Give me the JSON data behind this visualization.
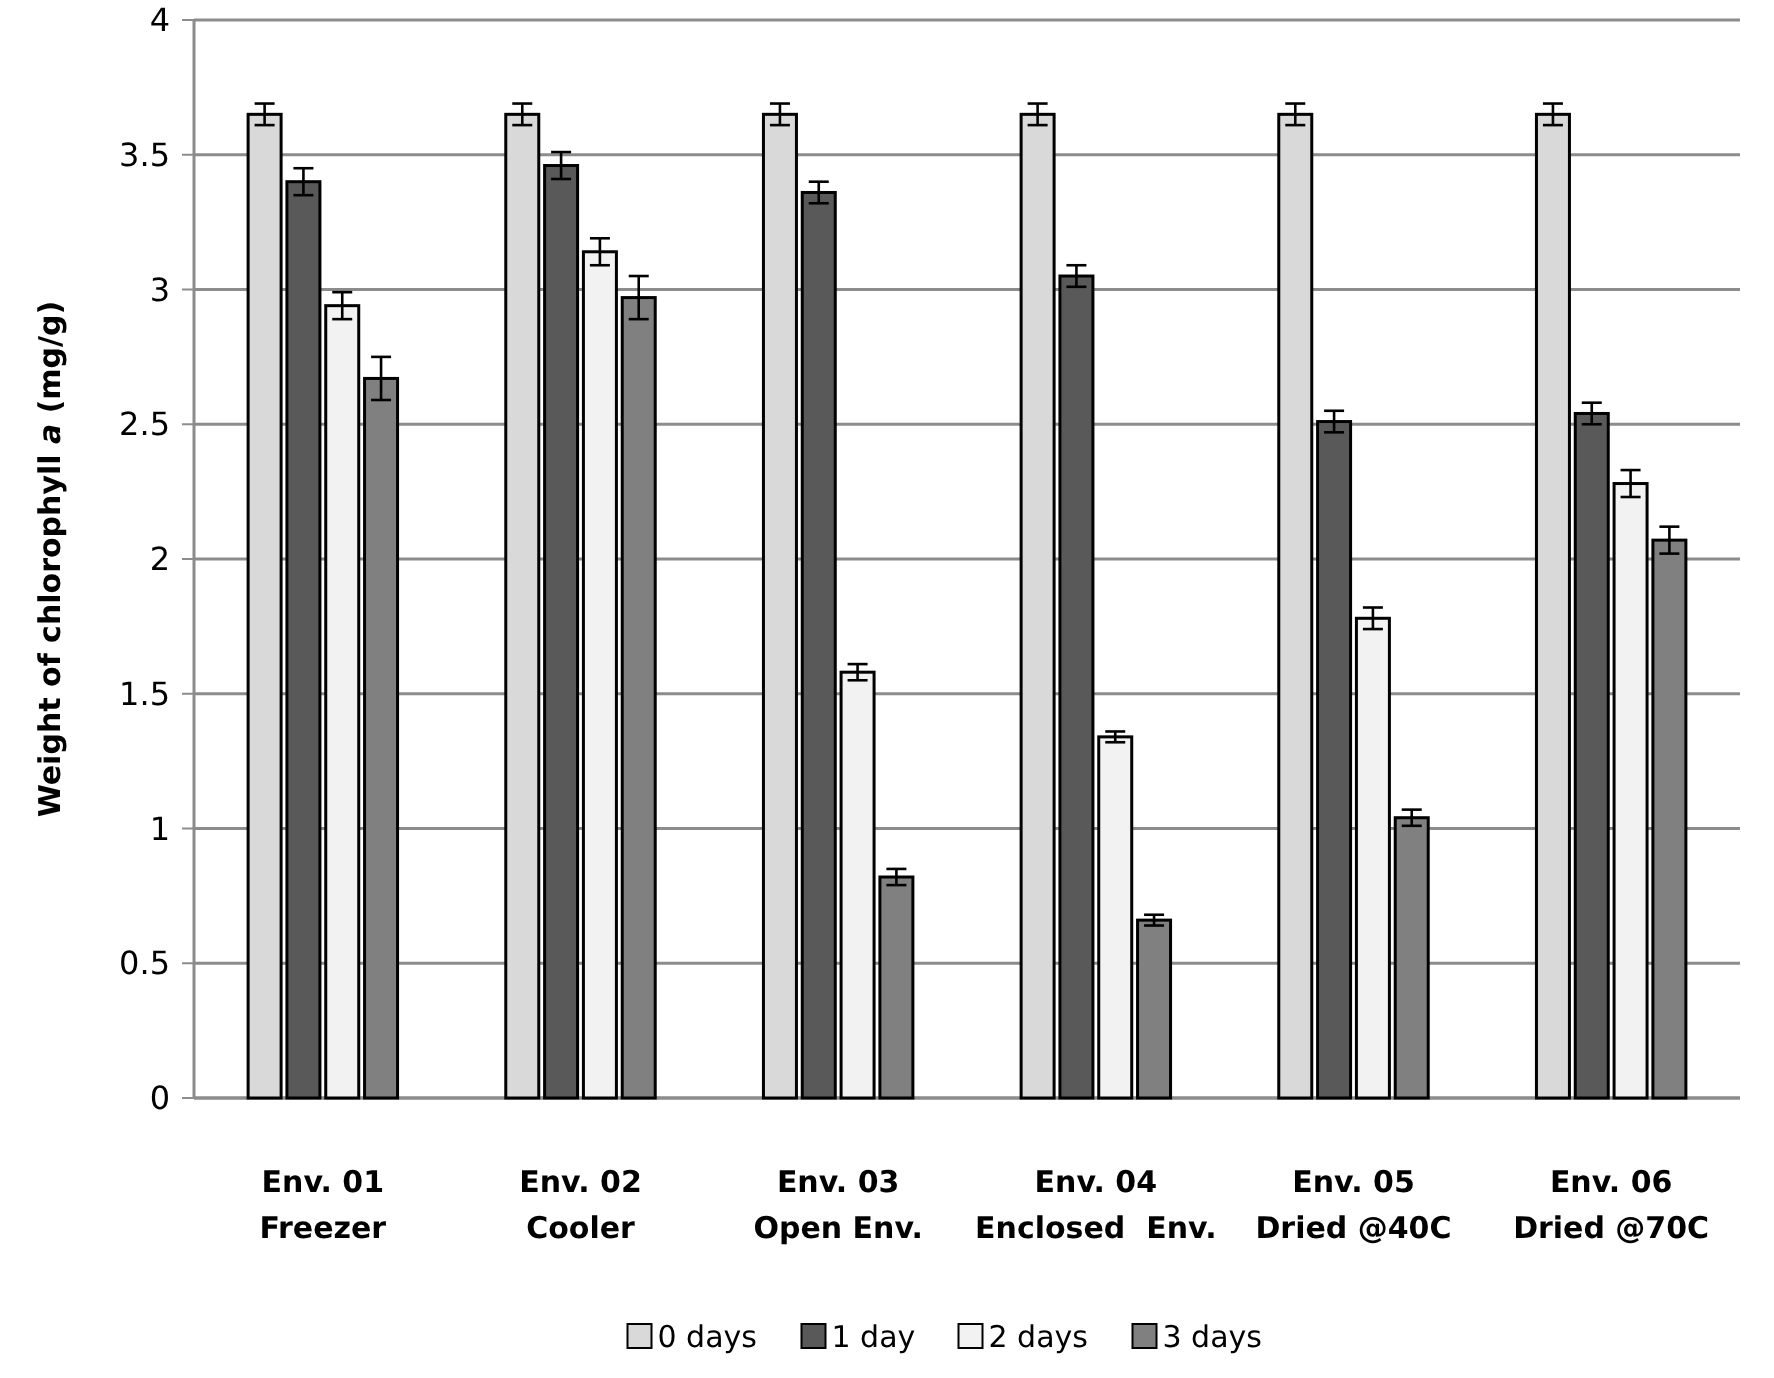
{
  "chart_data": {
    "type": "bar",
    "ylabel": "Weight of chlorophyll $_{}$a (mg/g)",
    "categories": [
      "Env. 01\nFreezer",
      "Env. 02\nCooler",
      "Env. 03\nOpen Env.",
      "Env. 04\nEnclosed  Env.",
      "Env. 05\nDried @40C",
      "Env. 06\nDried @70C"
    ],
    "series": [
      {
        "name": "0 days",
        "color": "#d9d9d9",
        "values": [
          3.65,
          3.65,
          3.65,
          3.65,
          3.65,
          3.65
        ],
        "errors": [
          0.04,
          0.04,
          0.04,
          0.04,
          0.04,
          0.04
        ]
      },
      {
        "name": "1 day",
        "color": "#595959",
        "values": [
          3.4,
          3.46,
          3.36,
          3.05,
          2.51,
          2.54
        ],
        "errors": [
          0.05,
          0.05,
          0.04,
          0.04,
          0.04,
          0.04
        ]
      },
      {
        "name": "2 days",
        "color": "#f2f2f2",
        "values": [
          2.94,
          3.14,
          1.58,
          1.34,
          1.78,
          2.28
        ],
        "errors": [
          0.05,
          0.05,
          0.03,
          0.02,
          0.04,
          0.05
        ]
      },
      {
        "name": "3 days",
        "color": "#808080",
        "values": [
          2.67,
          2.97,
          0.82,
          0.66,
          1.04,
          2.07
        ],
        "errors": [
          0.08,
          0.08,
          0.03,
          0.02,
          0.03,
          0.05
        ]
      }
    ],
    "ylim": [
      0,
      4
    ],
    "yticks": [
      0,
      0.5,
      1,
      1.5,
      2,
      2.5,
      3,
      3.5,
      4
    ],
    "grid": "y",
    "legend": "bottom"
  }
}
